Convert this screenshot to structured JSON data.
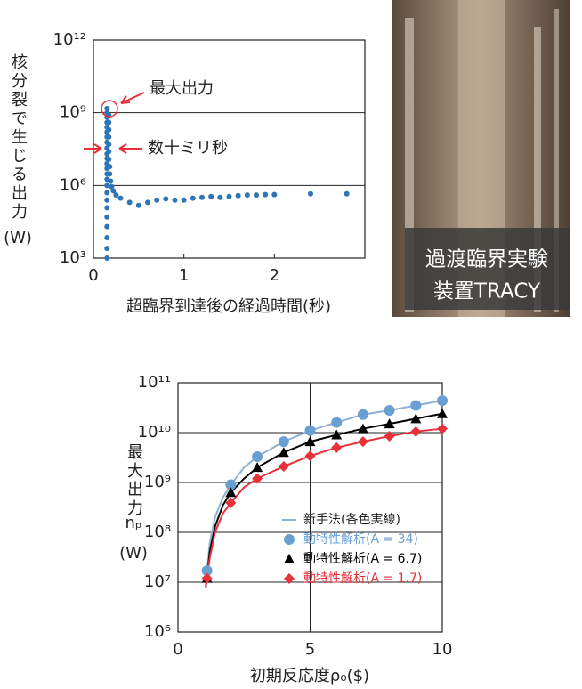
{
  "chart_data": [
    {
      "type": "scatter",
      "xlabel": "超臨界到達後の経過時間(秒)",
      "ylabel": [
        "核分裂で生じる出力",
        "(W)"
      ],
      "color": "#2e75b6",
      "ylog": true,
      "grid": "y",
      "xlim": [
        0,
        3
      ],
      "xticks": [
        0,
        1,
        2
      ],
      "ylim": [
        1000,
        1000000000000
      ],
      "yticks": [
        {
          "value": 1000,
          "label": "10³"
        },
        {
          "value": 1000000,
          "label": "10⁶"
        },
        {
          "value": 1000000000,
          "label": "10⁹"
        },
        {
          "value": 1000000000000,
          "label": "10¹²"
        }
      ],
      "annotations": [
        "最大出力",
        "数十ミリ秒"
      ],
      "x": [
        0.15,
        0.15,
        0.15,
        0.15,
        0.15,
        0.15,
        0.15,
        0.15,
        0.15,
        0.15,
        0.15,
        0.15,
        0.15,
        0.15,
        0.15,
        0.15,
        0.15,
        0.15,
        0.15,
        0.15,
        0.15,
        0.15,
        0.15,
        0.15,
        0.17,
        0.17,
        0.17,
        0.17,
        0.17,
        0.17,
        0.17,
        0.18,
        0.18,
        0.19,
        0.2,
        0.22,
        0.25,
        0.3,
        0.4,
        0.5,
        0.6,
        0.7,
        0.8,
        0.9,
        1.0,
        1.1,
        1.2,
        1.3,
        1.4,
        1.5,
        1.6,
        1.7,
        1.8,
        1.9,
        2.0,
        2.4,
        2.8
      ],
      "values": [
        1000,
        2500,
        7000,
        20000,
        50000,
        120000,
        250000,
        500000,
        1000000,
        1800000,
        3000000,
        5000000,
        8000000,
        13000000,
        20000000,
        35000000,
        60000000,
        100000000,
        160000000,
        250000000,
        400000000,
        650000000,
        1000000000,
        1500000000,
        800000000,
        400000000,
        200000000,
        100000000,
        50000000,
        25000000,
        12000000,
        6000000,
        3000000,
        1500000,
        900000,
        600000,
        400000,
        300000,
        200000,
        150000,
        200000,
        250000,
        280000,
        250000,
        250000,
        300000,
        320000,
        350000,
        320000,
        350000,
        380000,
        400000,
        400000,
        420000,
        420000,
        450000,
        450000
      ]
    },
    {
      "type": "line",
      "xlabel": "初期反応度ρ₀($)",
      "ylabel": [
        "最大出力",
        "nₚ",
        "(W)"
      ],
      "ylog": true,
      "grid": "both",
      "legend": "lower right",
      "xlim": [
        0,
        10
      ],
      "xticks": [
        0,
        5,
        10
      ],
      "ylim": [
        1000000,
        100000000000
      ],
      "yticks": [
        {
          "value": 1000000,
          "label": "10⁶"
        },
        {
          "value": 10000000,
          "label": "10⁷"
        },
        {
          "value": 100000000,
          "label": "10⁸"
        },
        {
          "value": 1000000000,
          "label": "10⁹"
        },
        {
          "value": 10000000000,
          "label": "10¹⁰"
        },
        {
          "value": 100000000000,
          "label": "10¹¹"
        }
      ],
      "series": [
        {
          "name": "新手法(各色実線)",
          "type": "line",
          "color": "#8fb0d4",
          "x": [
            1.05,
            1.1,
            1.2,
            1.4,
            1.7,
            2,
            2.5,
            3,
            4,
            5,
            6,
            7,
            8,
            9,
            10
          ],
          "values": [
            8000000,
            17000000,
            60000000,
            200000000,
            500000000,
            900000000,
            2000000000,
            3300000000,
            6600000000,
            11000000000,
            16000000000,
            23000000000,
            28000000000,
            35000000000,
            44000000000
          ]
        },
        {
          "type": "line",
          "color": "#000000",
          "x": [
            1.05,
            1.1,
            1.2,
            1.4,
            1.7,
            2,
            2.5,
            3,
            4,
            5,
            6,
            7,
            8,
            9,
            10
          ],
          "values": [
            8000000,
            12000000,
            40000000,
            130000000,
            350000000,
            630000000,
            1200000000,
            2000000000,
            4000000000,
            6600000000,
            9000000000,
            12000000000,
            15000000000,
            19000000000,
            24000000000
          ]
        },
        {
          "type": "line",
          "color": "#e8303a",
          "x": [
            1.05,
            1.1,
            1.2,
            1.4,
            1.7,
            2,
            2.5,
            3,
            4,
            5,
            6,
            7,
            8,
            9,
            10
          ],
          "values": [
            8000000,
            12000000,
            30000000,
            100000000,
            240000000,
            390000000,
            800000000,
            1200000000,
            2100000000,
            3400000000,
            5000000000,
            6600000000,
            8500000000,
            10500000000,
            12000000000
          ]
        },
        {
          "name": "動特性解析(A = 34)",
          "type": "scatter",
          "marker": "circle",
          "color": "#6a9fd2",
          "x": [
            1.1,
            2,
            3,
            4,
            5,
            6,
            7,
            8,
            9,
            10
          ],
          "values": [
            17000000,
            900000000,
            3300000000,
            6600000000,
            11000000000,
            16000000000,
            23000000000,
            28000000000,
            35000000000,
            44000000000
          ]
        },
        {
          "name": "動特性解析(A = 6.7)",
          "type": "scatter",
          "marker": "triangle",
          "color": "#000000",
          "x": [
            1.1,
            2,
            3,
            4,
            5,
            6,
            7,
            8,
            9,
            10
          ],
          "values": [
            12000000,
            630000000,
            2000000000,
            4000000000,
            6600000000,
            9000000000,
            12000000000,
            15000000000,
            19000000000,
            24000000000
          ]
        },
        {
          "name": "動特性解析(A = 1.7)",
          "type": "scatter",
          "marker": "diamond",
          "color": "#e8303a",
          "x": [
            1.1,
            2,
            3,
            4,
            5,
            6,
            7,
            8,
            9,
            10
          ],
          "values": [
            12000000,
            390000000,
            1200000000,
            2100000000,
            3400000000,
            5000000000,
            6600000000,
            8500000000,
            10500000000,
            12000000000
          ]
        }
      ]
    }
  ],
  "photo": {
    "caption": [
      "過渡臨界実験",
      "装置TRACY"
    ]
  }
}
